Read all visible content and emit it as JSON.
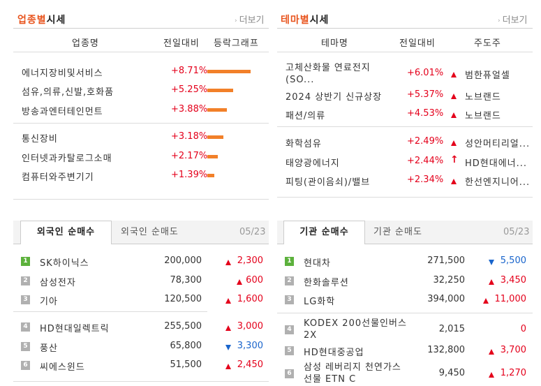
{
  "industry": {
    "title_highlight": "업종별",
    "title_rest": "시세",
    "more": "더보기",
    "columns": [
      "업종명",
      "전일대비",
      "등락그래프"
    ],
    "rows": [
      {
        "name": "에너지장비및서비스",
        "change": "+8.71%",
        "bar_pct": 8.71
      },
      {
        "name": "섬유,의류,신발,호화품",
        "change": "+5.25%",
        "bar_pct": 5.25
      },
      {
        "name": "방송과엔터테인먼트",
        "change": "+3.88%",
        "bar_pct": 3.88
      },
      {
        "name": "통신장비",
        "change": "+3.18%",
        "bar_pct": 3.18
      },
      {
        "name": "인터넷과카탈로그소매",
        "change": "+2.17%",
        "bar_pct": 2.17
      },
      {
        "name": "컴퓨터와주변기기",
        "change": "+1.39%",
        "bar_pct": 1.39
      }
    ]
  },
  "theme": {
    "title_highlight": "테마별",
    "title_rest": "시세",
    "more": "더보기",
    "columns": [
      "테마명",
      "전일대비",
      "주도주"
    ],
    "rows": [
      {
        "name": "고체산화물 연료전지(SO...",
        "change": "+6.01%",
        "icon": "up-triangle-icon",
        "leader": "범한퓨얼셀"
      },
      {
        "name": "2024 상반기 신규상장",
        "change": "+5.37%",
        "icon": "up-triangle-icon",
        "leader": "노브랜드"
      },
      {
        "name": "패션/의류",
        "change": "+4.53%",
        "icon": "up-triangle-icon",
        "leader": "노브랜드"
      },
      {
        "name": "화학섬유",
        "change": "+2.49%",
        "icon": "up-triangle-icon",
        "leader": "성안머티리얼..."
      },
      {
        "name": "태양광에너지",
        "change": "+2.44%",
        "icon": "upper-limit-arrow-icon",
        "leader": "HD현대에너..."
      },
      {
        "name": "피팅(관이음쇠)/밸브",
        "change": "+2.34%",
        "icon": "up-triangle-icon",
        "leader": "한선엔지니어..."
      }
    ]
  },
  "foreign": {
    "tab_active": "외국인 순매수",
    "tab_inactive": "외국인 순매도",
    "date": "05/23",
    "rows": [
      {
        "rank": "1",
        "name": "SK하이닉스",
        "price": "200,000",
        "dir": "up",
        "change": "2,300"
      },
      {
        "rank": "2",
        "name": "삼성전자",
        "price": "78,300",
        "dir": "up",
        "change": "600"
      },
      {
        "rank": "3",
        "name": "기아",
        "price": "120,500",
        "dir": "up",
        "change": "1,600"
      },
      {
        "rank": "4",
        "name": "HD현대일렉트릭",
        "price": "255,500",
        "dir": "up",
        "change": "3,000"
      },
      {
        "rank": "5",
        "name": "풍산",
        "price": "65,800",
        "dir": "down",
        "change": "3,300"
      },
      {
        "rank": "6",
        "name": "씨에스윈드",
        "price": "51,500",
        "dir": "up",
        "change": "2,450"
      }
    ]
  },
  "institution": {
    "tab_active": "기관 순매수",
    "tab_inactive": "기관 순매도",
    "date": "05/23",
    "rows": [
      {
        "rank": "1",
        "name": "현대차",
        "price": "271,500",
        "dir": "down",
        "change": "5,500"
      },
      {
        "rank": "2",
        "name": "한화솔루션",
        "price": "32,250",
        "dir": "up",
        "change": "3,450"
      },
      {
        "rank": "3",
        "name": "LG화학",
        "price": "394,000",
        "dir": "up",
        "change": "11,000"
      },
      {
        "rank": "4",
        "name": "KODEX 200선물인버스2X",
        "price": "2,015",
        "dir": "none",
        "change": "0"
      },
      {
        "rank": "5",
        "name": "HD현대중공업",
        "price": "132,800",
        "dir": "up",
        "change": "3,700"
      },
      {
        "rank": "6",
        "name": "삼성 레버리지 천연가스 선물 ETN C",
        "price": "9,450",
        "dir": "up",
        "change": "1,270"
      }
    ]
  },
  "colors": {
    "accent": "#e8541d",
    "up": "#e4001b",
    "down": "#1a65cc",
    "bar": "#f28029"
  }
}
